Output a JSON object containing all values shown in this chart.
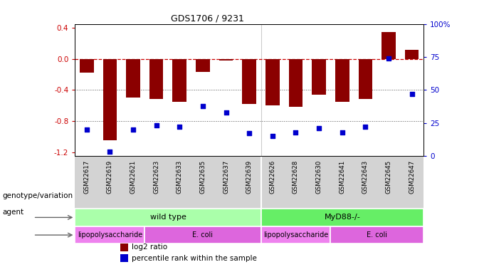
{
  "title": "GDS1706 / 9231",
  "samples": [
    "GSM22617",
    "GSM22619",
    "GSM22621",
    "GSM22623",
    "GSM22633",
    "GSM22635",
    "GSM22637",
    "GSM22639",
    "GSM22626",
    "GSM22628",
    "GSM22630",
    "GSM22641",
    "GSM22643",
    "GSM22645",
    "GSM22647"
  ],
  "log2_ratio": [
    -0.18,
    -1.05,
    -0.5,
    -0.52,
    -0.55,
    -0.17,
    -0.02,
    -0.58,
    -0.6,
    -0.62,
    -0.46,
    -0.55,
    -0.52,
    0.35,
    0.12
  ],
  "percentile": [
    20,
    3,
    20,
    23,
    22,
    38,
    33,
    17,
    15,
    18,
    21,
    18,
    22,
    74,
    47
  ],
  "bar_color": "#8B0000",
  "dot_color": "#0000CD",
  "ylim_left": [
    -1.25,
    0.45
  ],
  "ylim_right": [
    0,
    100
  ],
  "yticks_left": [
    0.4,
    0.0,
    -0.4,
    -0.8,
    -1.2
  ],
  "yticks_right": [
    100,
    75,
    50,
    25,
    0
  ],
  "hlines": [
    0.0,
    -0.4,
    -0.8
  ],
  "hlines_styles": [
    "dashed",
    "dotted",
    "dotted"
  ],
  "hlines_colors": [
    "#CC0000",
    "#555555",
    "#555555"
  ],
  "genotype_groups": [
    {
      "label": "wild type",
      "start": 0,
      "end": 7,
      "color": "#AAFFAA"
    },
    {
      "label": "MyD88-/-",
      "start": 8,
      "end": 14,
      "color": "#66EE66"
    }
  ],
  "agent_groups": [
    {
      "label": "lipopolysaccharide",
      "start": 0,
      "end": 2,
      "color": "#EE82EE"
    },
    {
      "label": "E. coli",
      "start": 3,
      "end": 7,
      "color": "#DD66DD"
    },
    {
      "label": "lipopolysaccharide",
      "start": 8,
      "end": 10,
      "color": "#EE82EE"
    },
    {
      "label": "E. coli",
      "start": 11,
      "end": 14,
      "color": "#DD66DD"
    }
  ],
  "legend_items": [
    {
      "label": "log2 ratio",
      "color": "#8B0000"
    },
    {
      "label": "percentile rank within the sample",
      "color": "#0000CD"
    }
  ],
  "left_labels": [
    "genotype/variation",
    "agent"
  ],
  "background_color": "#FFFFFF"
}
